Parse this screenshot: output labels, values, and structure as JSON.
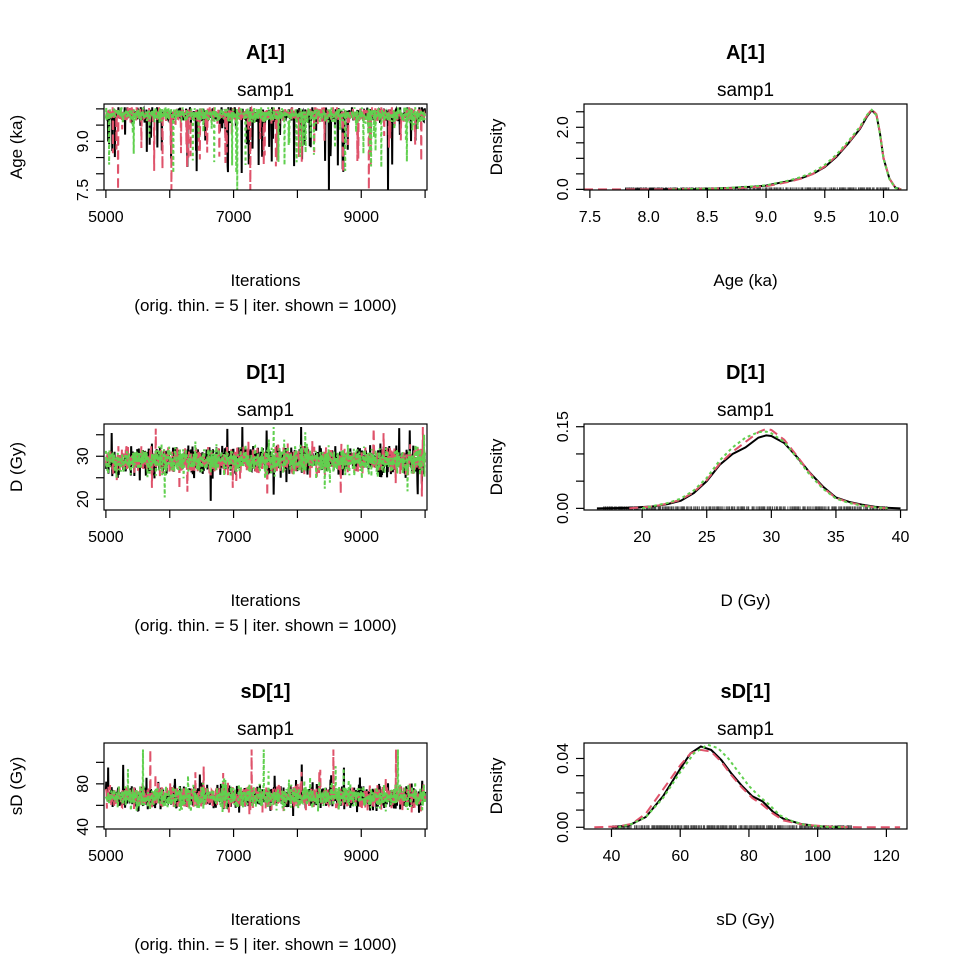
{
  "colors": {
    "chain1": "#000000",
    "chain2": "#DF536B",
    "chain3": "#61D04F",
    "axis": "#000000"
  },
  "chart_data": [
    {
      "type": "line",
      "title": "A[1]",
      "subtitle": "samp1",
      "xlabel": "Iterations",
      "xlabel2": "(orig. thin. = 5 | iter. shown = 1000)",
      "ylabel": "Age (ka)",
      "xlim": [
        4970,
        10030
      ],
      "ylim": [
        7.5,
        10.15
      ],
      "xticks": [
        5000,
        7000,
        9000
      ],
      "xtick_labels": [
        "5000",
        "7000",
        "9000"
      ],
      "xminor": [
        6000,
        8000,
        10000
      ],
      "yticks": [
        7.5,
        9.0
      ],
      "ytick_labels": [
        "7.5",
        "9.0"
      ],
      "yminor": [
        8.0,
        8.5,
        9.5,
        10.0
      ],
      "trace": {
        "iter_start": 5000,
        "iter_end": 10000,
        "n": 1000,
        "center": 9.82,
        "spread": 0.18,
        "lo": 7.5,
        "hi": 10.05,
        "skew": "left"
      },
      "series": [
        {
          "color": "#000000",
          "dash": "",
          "values": []
        },
        {
          "color": "#DF536B",
          "dash": "9,5",
          "values": []
        },
        {
          "color": "#61D04F",
          "dash": "3,3",
          "values": []
        }
      ],
      "rug": false
    },
    {
      "type": "line",
      "title": "A[1]",
      "subtitle": "samp1",
      "xlabel": "Age (ka)",
      "xlabel2": "",
      "ylabel": "Density",
      "xlim": [
        7.45,
        10.2
      ],
      "ylim": [
        -0.02,
        2.75
      ],
      "xticks": [
        7.5,
        8.0,
        8.5,
        9.0,
        9.5,
        10.0
      ],
      "xtick_labels": [
        "7.5",
        "8.0",
        "8.5",
        "9.0",
        "9.5",
        "10.0"
      ],
      "xminor": [],
      "yticks": [
        0.0,
        2.0
      ],
      "ytick_labels": [
        "0.0",
        "2.0"
      ],
      "yminor": [
        0.5,
        1.0,
        1.5,
        2.5
      ],
      "series": [
        {
          "color": "#000000",
          "dash": "",
          "points": [
            [
              7.8,
              0.0
            ],
            [
              8.4,
              0.01
            ],
            [
              8.7,
              0.05
            ],
            [
              8.9,
              0.09
            ],
            [
              9.0,
              0.12
            ],
            [
              9.1,
              0.2
            ],
            [
              9.2,
              0.27
            ],
            [
              9.3,
              0.36
            ],
            [
              9.4,
              0.5
            ],
            [
              9.5,
              0.72
            ],
            [
              9.6,
              1.05
            ],
            [
              9.7,
              1.48
            ],
            [
              9.8,
              1.95
            ],
            [
              9.86,
              2.35
            ],
            [
              9.9,
              2.55
            ],
            [
              9.94,
              2.4
            ],
            [
              9.97,
              1.8
            ],
            [
              10.0,
              1.0
            ],
            [
              10.05,
              0.35
            ],
            [
              10.1,
              0.06
            ],
            [
              10.15,
              0.0
            ]
          ]
        },
        {
          "color": "#DF536B",
          "dash": "9,5",
          "points": [
            [
              7.45,
              0.0
            ],
            [
              8.0,
              0.0
            ],
            [
              8.5,
              0.02
            ],
            [
              8.8,
              0.05
            ],
            [
              9.0,
              0.1
            ],
            [
              9.1,
              0.17
            ],
            [
              9.2,
              0.25
            ],
            [
              9.3,
              0.35
            ],
            [
              9.4,
              0.5
            ],
            [
              9.5,
              0.74
            ],
            [
              9.6,
              1.08
            ],
            [
              9.7,
              1.5
            ],
            [
              9.8,
              1.98
            ],
            [
              9.86,
              2.38
            ],
            [
              9.9,
              2.58
            ],
            [
              9.94,
              2.42
            ],
            [
              9.97,
              1.82
            ],
            [
              10.0,
              1.02
            ],
            [
              10.05,
              0.35
            ],
            [
              10.1,
              0.06
            ],
            [
              10.15,
              0.0
            ]
          ]
        },
        {
          "color": "#61D04F",
          "dash": "3,3",
          "points": [
            [
              8.2,
              0.0
            ],
            [
              8.6,
              0.03
            ],
            [
              8.9,
              0.1
            ],
            [
              9.0,
              0.13
            ],
            [
              9.1,
              0.21
            ],
            [
              9.2,
              0.29
            ],
            [
              9.3,
              0.4
            ],
            [
              9.4,
              0.55
            ],
            [
              9.5,
              0.79
            ],
            [
              9.6,
              1.12
            ],
            [
              9.7,
              1.55
            ],
            [
              9.8,
              2.02
            ],
            [
              9.86,
              2.4
            ],
            [
              9.9,
              2.56
            ],
            [
              9.94,
              2.38
            ],
            [
              9.97,
              1.78
            ],
            [
              10.0,
              0.98
            ],
            [
              10.05,
              0.33
            ],
            [
              10.1,
              0.05
            ],
            [
              10.15,
              0.0
            ]
          ]
        }
      ],
      "rug": true,
      "rug_range": [
        7.8,
        10.05
      ]
    },
    {
      "type": "line",
      "title": "D[1]",
      "subtitle": "samp1",
      "xlabel": "Iterations",
      "xlabel2": "(orig. thin. = 5 | iter. shown = 1000)",
      "ylabel": "D (Gy)",
      "xlim": [
        4970,
        10030
      ],
      "ylim": [
        17.5,
        37.5
      ],
      "xticks": [
        5000,
        7000,
        9000
      ],
      "xtick_labels": [
        "5000",
        "7000",
        "9000"
      ],
      "xminor": [
        6000,
        8000,
        10000
      ],
      "yticks": [
        20,
        30
      ],
      "ytick_labels": [
        "20",
        "30"
      ],
      "yminor": [
        25,
        35
      ],
      "trace": {
        "iter_start": 5000,
        "iter_end": 10000,
        "n": 1000,
        "center": 29.0,
        "spread": 2.6,
        "lo": 18.5,
        "hi": 36.8,
        "skew": "none"
      },
      "series": [
        {
          "color": "#000000",
          "dash": "",
          "values": []
        },
        {
          "color": "#DF536B",
          "dash": "9,5",
          "values": []
        },
        {
          "color": "#61D04F",
          "dash": "3,3",
          "values": []
        }
      ],
      "rug": false
    },
    {
      "type": "line",
      "title": "D[1]",
      "subtitle": "samp1",
      "xlabel": "D (Gy)",
      "xlabel2": "",
      "ylabel": "Density",
      "xlim": [
        15.5,
        40.5
      ],
      "ylim": [
        -0.003,
        0.155
      ],
      "xticks": [
        20,
        25,
        30,
        35,
        40
      ],
      "xtick_labels": [
        "20",
        "25",
        "30",
        "35",
        "40"
      ],
      "xminor": [],
      "yticks": [
        0.0,
        0.15
      ],
      "ytick_labels": [
        "0.00",
        "0.15"
      ],
      "yminor": [
        0.05,
        0.1
      ],
      "series": [
        {
          "color": "#000000",
          "dash": "",
          "points": [
            [
              16.5,
              0.0
            ],
            [
              19,
              0.001
            ],
            [
              21,
              0.004
            ],
            [
              22,
              0.008
            ],
            [
              23,
              0.014
            ],
            [
              24,
              0.028
            ],
            [
              25,
              0.05
            ],
            [
              26,
              0.08
            ],
            [
              27,
              0.1
            ],
            [
              28,
              0.112
            ],
            [
              29,
              0.13
            ],
            [
              29.6,
              0.134
            ],
            [
              30,
              0.133
            ],
            [
              31,
              0.12
            ],
            [
              32,
              0.094
            ],
            [
              33,
              0.065
            ],
            [
              34,
              0.04
            ],
            [
              35,
              0.02
            ],
            [
              36,
              0.012
            ],
            [
              37,
              0.007
            ],
            [
              38,
              0.003
            ],
            [
              39,
              0.001
            ],
            [
              40,
              0.0
            ]
          ]
        },
        {
          "color": "#DF536B",
          "dash": "9,5",
          "points": [
            [
              19,
              0.0
            ],
            [
              21,
              0.004
            ],
            [
              22,
              0.009
            ],
            [
              23,
              0.016
            ],
            [
              24,
              0.03
            ],
            [
              25,
              0.052
            ],
            [
              26,
              0.082
            ],
            [
              27,
              0.104
            ],
            [
              28,
              0.122
            ],
            [
              29,
              0.14
            ],
            [
              29.6,
              0.146
            ],
            [
              30,
              0.144
            ],
            [
              31,
              0.126
            ],
            [
              32,
              0.096
            ],
            [
              33,
              0.064
            ],
            [
              34,
              0.038
            ],
            [
              35,
              0.019
            ],
            [
              36,
              0.011
            ],
            [
              37,
              0.006
            ],
            [
              38,
              0.002
            ],
            [
              39,
              0.0
            ]
          ]
        },
        {
          "color": "#61D04F",
          "dash": "3,3",
          "points": [
            [
              20,
              0.0
            ],
            [
              21,
              0.005
            ],
            [
              22,
              0.01
            ],
            [
              23,
              0.018
            ],
            [
              24,
              0.033
            ],
            [
              25,
              0.056
            ],
            [
              26,
              0.088
            ],
            [
              27,
              0.112
            ],
            [
              28,
              0.13
            ],
            [
              29,
              0.14
            ],
            [
              29.6,
              0.141
            ],
            [
              30,
              0.138
            ],
            [
              31,
              0.122
            ],
            [
              32,
              0.092
            ],
            [
              33,
              0.061
            ],
            [
              34,
              0.036
            ],
            [
              35,
              0.018
            ],
            [
              36,
              0.01
            ],
            [
              37,
              0.005
            ],
            [
              38,
              0.002
            ],
            [
              39,
              0.0
            ]
          ]
        }
      ],
      "rug": true,
      "rug_range": [
        17,
        39
      ]
    },
    {
      "type": "line",
      "title": "sD[1]",
      "subtitle": "samp1",
      "xlabel": "Iterations",
      "xlabel2": "(orig. thin. = 5 | iter. shown = 1000)",
      "ylabel": "sD (Gy)",
      "xlim": [
        4970,
        10030
      ],
      "ylim": [
        38,
        118
      ],
      "xticks": [
        5000,
        7000,
        9000
      ],
      "xtick_labels": [
        "5000",
        "7000",
        "9000"
      ],
      "xminor": [
        6000,
        8000,
        10000
      ],
      "yticks": [
        40,
        80
      ],
      "ytick_labels": [
        "40",
        "80"
      ],
      "yminor": [
        60,
        100
      ],
      "trace": {
        "iter_start": 5000,
        "iter_end": 10000,
        "n": 1000,
        "center": 68,
        "spread": 9,
        "lo": 42,
        "hi": 112,
        "skew": "right"
      },
      "series": [
        {
          "color": "#000000",
          "dash": "",
          "values": []
        },
        {
          "color": "#DF536B",
          "dash": "9,5",
          "values": []
        },
        {
          "color": "#61D04F",
          "dash": "3,3",
          "values": []
        }
      ],
      "rug": false
    },
    {
      "type": "line",
      "title": "sD[1]",
      "subtitle": "samp1",
      "xlabel": "sD (Gy)",
      "xlabel2": "",
      "ylabel": "Density",
      "xlim": [
        32,
        126
      ],
      "ylim": [
        -0.001,
        0.049
      ],
      "xticks": [
        40,
        60,
        80,
        100,
        120
      ],
      "xtick_labels": [
        "40",
        "60",
        "80",
        "100",
        "120"
      ],
      "xminor": [],
      "yticks": [
        0.0,
        0.04
      ],
      "ytick_labels": [
        "0.00",
        "0.04"
      ],
      "yminor": [
        0.01,
        0.02,
        0.03
      ],
      "series": [
        {
          "color": "#000000",
          "dash": "",
          "points": [
            [
              40,
              0.0
            ],
            [
              45,
              0.001
            ],
            [
              50,
              0.006
            ],
            [
              55,
              0.018
            ],
            [
              60,
              0.034
            ],
            [
              63,
              0.043
            ],
            [
              66,
              0.047
            ],
            [
              69,
              0.045
            ],
            [
              72,
              0.039
            ],
            [
              75,
              0.031
            ],
            [
              78,
              0.024
            ],
            [
              81,
              0.018
            ],
            [
              84,
              0.015
            ],
            [
              87,
              0.009
            ],
            [
              90,
              0.005
            ],
            [
              95,
              0.002
            ],
            [
              100,
              0.0006
            ],
            [
              106,
              0.0
            ]
          ]
        },
        {
          "color": "#DF536B",
          "dash": "9,5",
          "points": [
            [
              35,
              0.0
            ],
            [
              42,
              0.0005
            ],
            [
              46,
              0.002
            ],
            [
              50,
              0.008
            ],
            [
              55,
              0.022
            ],
            [
              60,
              0.036
            ],
            [
              63,
              0.043
            ],
            [
              66,
              0.045
            ],
            [
              69,
              0.044
            ],
            [
              72,
              0.038
            ],
            [
              75,
              0.03
            ],
            [
              78,
              0.023
            ],
            [
              81,
              0.017
            ],
            [
              84,
              0.013
            ],
            [
              87,
              0.008
            ],
            [
              90,
              0.004
            ],
            [
              96,
              0.0015
            ],
            [
              104,
              0.0003
            ],
            [
              112,
              0.0
            ],
            [
              124,
              0.0
            ]
          ]
        },
        {
          "color": "#61D04F",
          "dash": "3,3",
          "points": [
            [
              42,
              0.0
            ],
            [
              46,
              0.002
            ],
            [
              50,
              0.006
            ],
            [
              55,
              0.017
            ],
            [
              60,
              0.032
            ],
            [
              64,
              0.043
            ],
            [
              68,
              0.048
            ],
            [
              71,
              0.046
            ],
            [
              74,
              0.04
            ],
            [
              77,
              0.032
            ],
            [
              80,
              0.024
            ],
            [
              83,
              0.018
            ],
            [
              86,
              0.013
            ],
            [
              89,
              0.007
            ],
            [
              92,
              0.004
            ],
            [
              96,
              0.0015
            ],
            [
              102,
              0.0003
            ],
            [
              108,
              0.0
            ]
          ]
        }
      ],
      "rug": true,
      "rug_range": [
        40,
        110
      ]
    }
  ]
}
